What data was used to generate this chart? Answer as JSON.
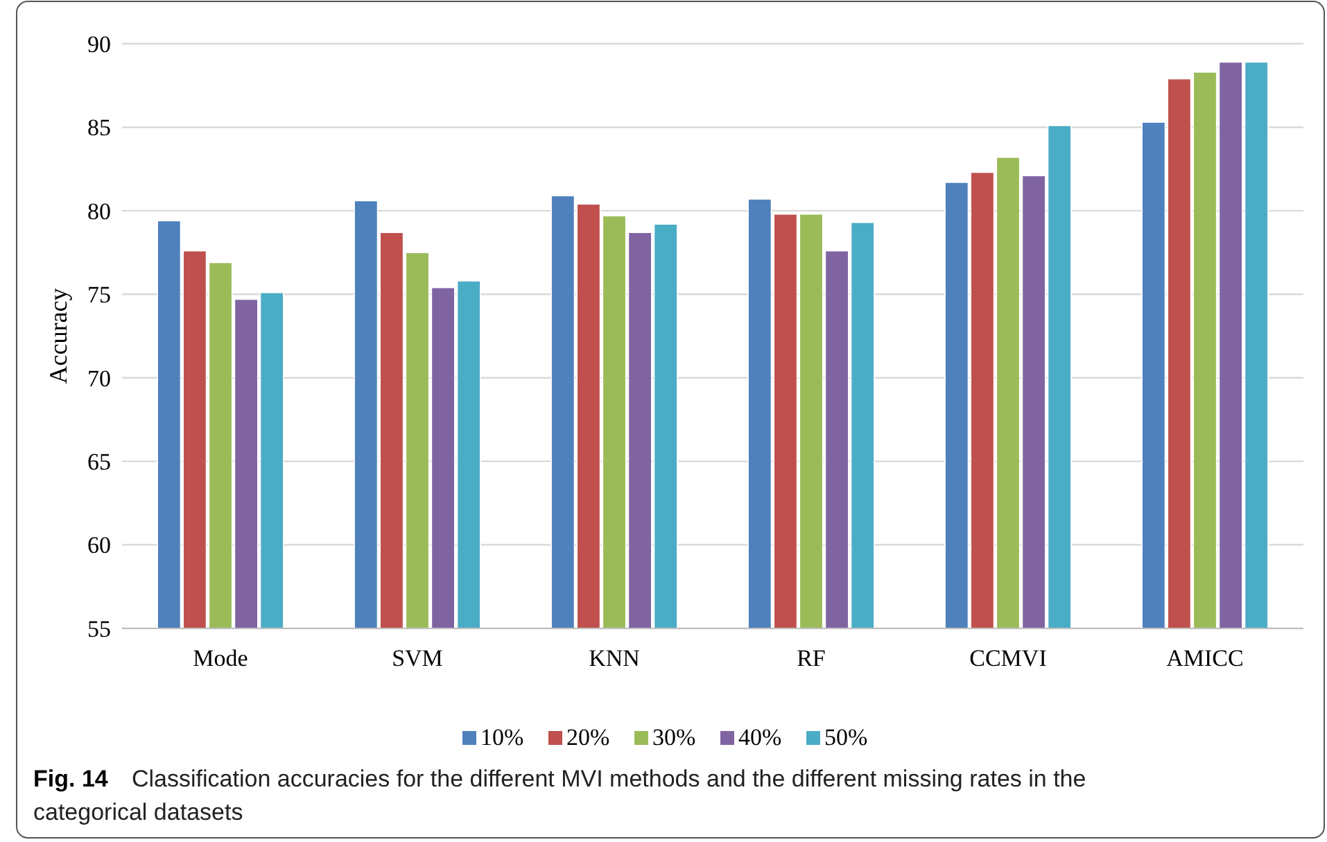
{
  "chart_data": {
    "type": "bar",
    "title": "Fig. 14",
    "annotations": [
      "Classification accuracies for the different MVI methods and the different missing rates in the categorical datasets"
    ],
    "ylabel": "Accuracy",
    "categories": [
      "Mode",
      "SVM",
      "KNN",
      "RF",
      "CCMVI",
      "AMICC"
    ],
    "series": [
      {
        "name": "10%",
        "color": "#4f81bd",
        "values": [
          79.4,
          80.6,
          80.9,
          80.7,
          81.7,
          85.3
        ]
      },
      {
        "name": "20%",
        "color": "#c0504d",
        "values": [
          77.6,
          78.7,
          80.4,
          79.8,
          82.3,
          87.9
        ]
      },
      {
        "name": "30%",
        "color": "#9bbb59",
        "values": [
          76.9,
          77.5,
          79.7,
          79.8,
          83.2,
          88.3
        ]
      },
      {
        "name": "40%",
        "color": "#8064a2",
        "values": [
          74.7,
          75.4,
          78.7,
          77.6,
          82.1,
          88.9
        ]
      },
      {
        "name": "50%",
        "color": "#4bacc6",
        "values": [
          75.1,
          75.8,
          79.2,
          79.3,
          85.1,
          88.9
        ]
      }
    ],
    "ylim": [
      55,
      90
    ],
    "yticks": [
      55,
      60,
      65,
      70,
      75,
      80,
      85,
      90
    ],
    "grid": "y",
    "legend": "bottom"
  }
}
